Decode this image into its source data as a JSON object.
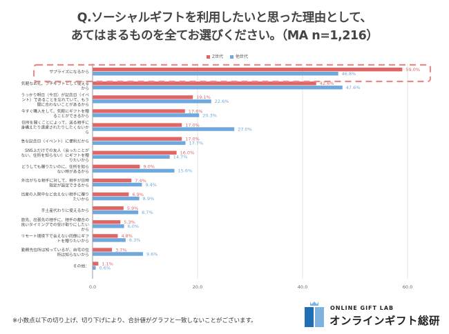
{
  "chart_data": {
    "type": "bar",
    "orientation": "horizontal",
    "title_line1": "Q.ソーシャルギフトを利用したいと思った理由として、",
    "title_line2": "あてはまるものを全てお選びください。（MA n=1,216）",
    "xlabel": "",
    "ylabel": "",
    "xlim": [
      0,
      65
    ],
    "xticks": [
      0,
      20,
      40,
      60
    ],
    "xtick_labels": [
      "0.0",
      "20.0",
      "40.0",
      "60.0"
    ],
    "grid": true,
    "legend_position": "top-center",
    "highlighted_category_index": 0,
    "categories": [
      "サプライズになるから",
      "気軽なお礼、プチギフトとして使えるから",
      "うっかり明日（今日）が記念日（イベント）であることを忘れていて、もう間に合わないことがあるから",
      "今すぐ購入をして、気軽にギフトを贈ることができるから",
      "住所を聞くことによって、送る相手に身構えたり遠慮されたりしたくないから",
      "急な記念日（イベント）に便利だから",
      "SNS上だけでの友人（会ったことがない、住所を知らない）にギフトを贈りたいから",
      "どうしても贈りたいのに、住所を知らない時があるから",
      "外出がちな相手に対して、相手が日時指定が設定できるから",
      "出産の入院中など会えない相手に贈りたいから",
      "手土産代わりに使えるから",
      "旅先、出張先の相手に、相手の都合の良いタイミングでの受け取りにしたいから",
      "リモート環境下で会えない同僚にギフトを贈りたいから",
      "勤務先住所は知っているが、自宅の住所は知らないから",
      "その他："
    ],
    "series": [
      {
        "name": "Z世代",
        "color": "#e06666",
        "values": [
          59.0,
          42.6,
          19.1,
          17.6,
          17.0,
          17.0,
          16.0,
          9.0,
          7.4,
          6.9,
          5.9,
          5.3,
          4.8,
          3.7,
          1.1
        ],
        "labels": [
          "59.0%",
          "42.6%",
          "19.1%",
          "17.6%",
          "17.0%",
          "17.0%",
          "16.0%",
          "9.0%",
          "7.4%",
          "6.9%",
          "5.9%",
          "5.3%",
          "4.8%",
          "3.7%",
          "1.1%"
        ]
      },
      {
        "name": "他世代",
        "color": "#6fa8dc",
        "values": [
          46.8,
          47.6,
          22.6,
          20.3,
          27.0,
          17.7,
          14.7,
          15.6,
          9.4,
          8.9,
          8.7,
          6.0,
          6.3,
          9.6,
          0.6
        ],
        "labels": [
          "46.8%",
          "47.6%",
          "22.6%",
          "20.3%",
          "27.0%",
          "17.7%",
          "14.7%",
          "15.6%",
          "9.4%",
          "8.9%",
          "8.7%",
          "6.0%",
          "6.3%",
          "9.6%",
          "0.6%"
        ]
      }
    ]
  },
  "footnote": "※小数点以下の切り上げ、切り下げにより、合計値がグラフと一致しないことがございます。",
  "logo": {
    "en": "ONLINE GIFT LAB",
    "jp": "オンラインギフト総研",
    "icon": "gift-box-icon"
  },
  "colors": {
    "highlight_box": "#e88a8a",
    "grid": "#e6e6e6",
    "axis": "#999999",
    "logo_dark_blue": "#1f6fb2",
    "logo_light_blue": "#7fb3df"
  }
}
